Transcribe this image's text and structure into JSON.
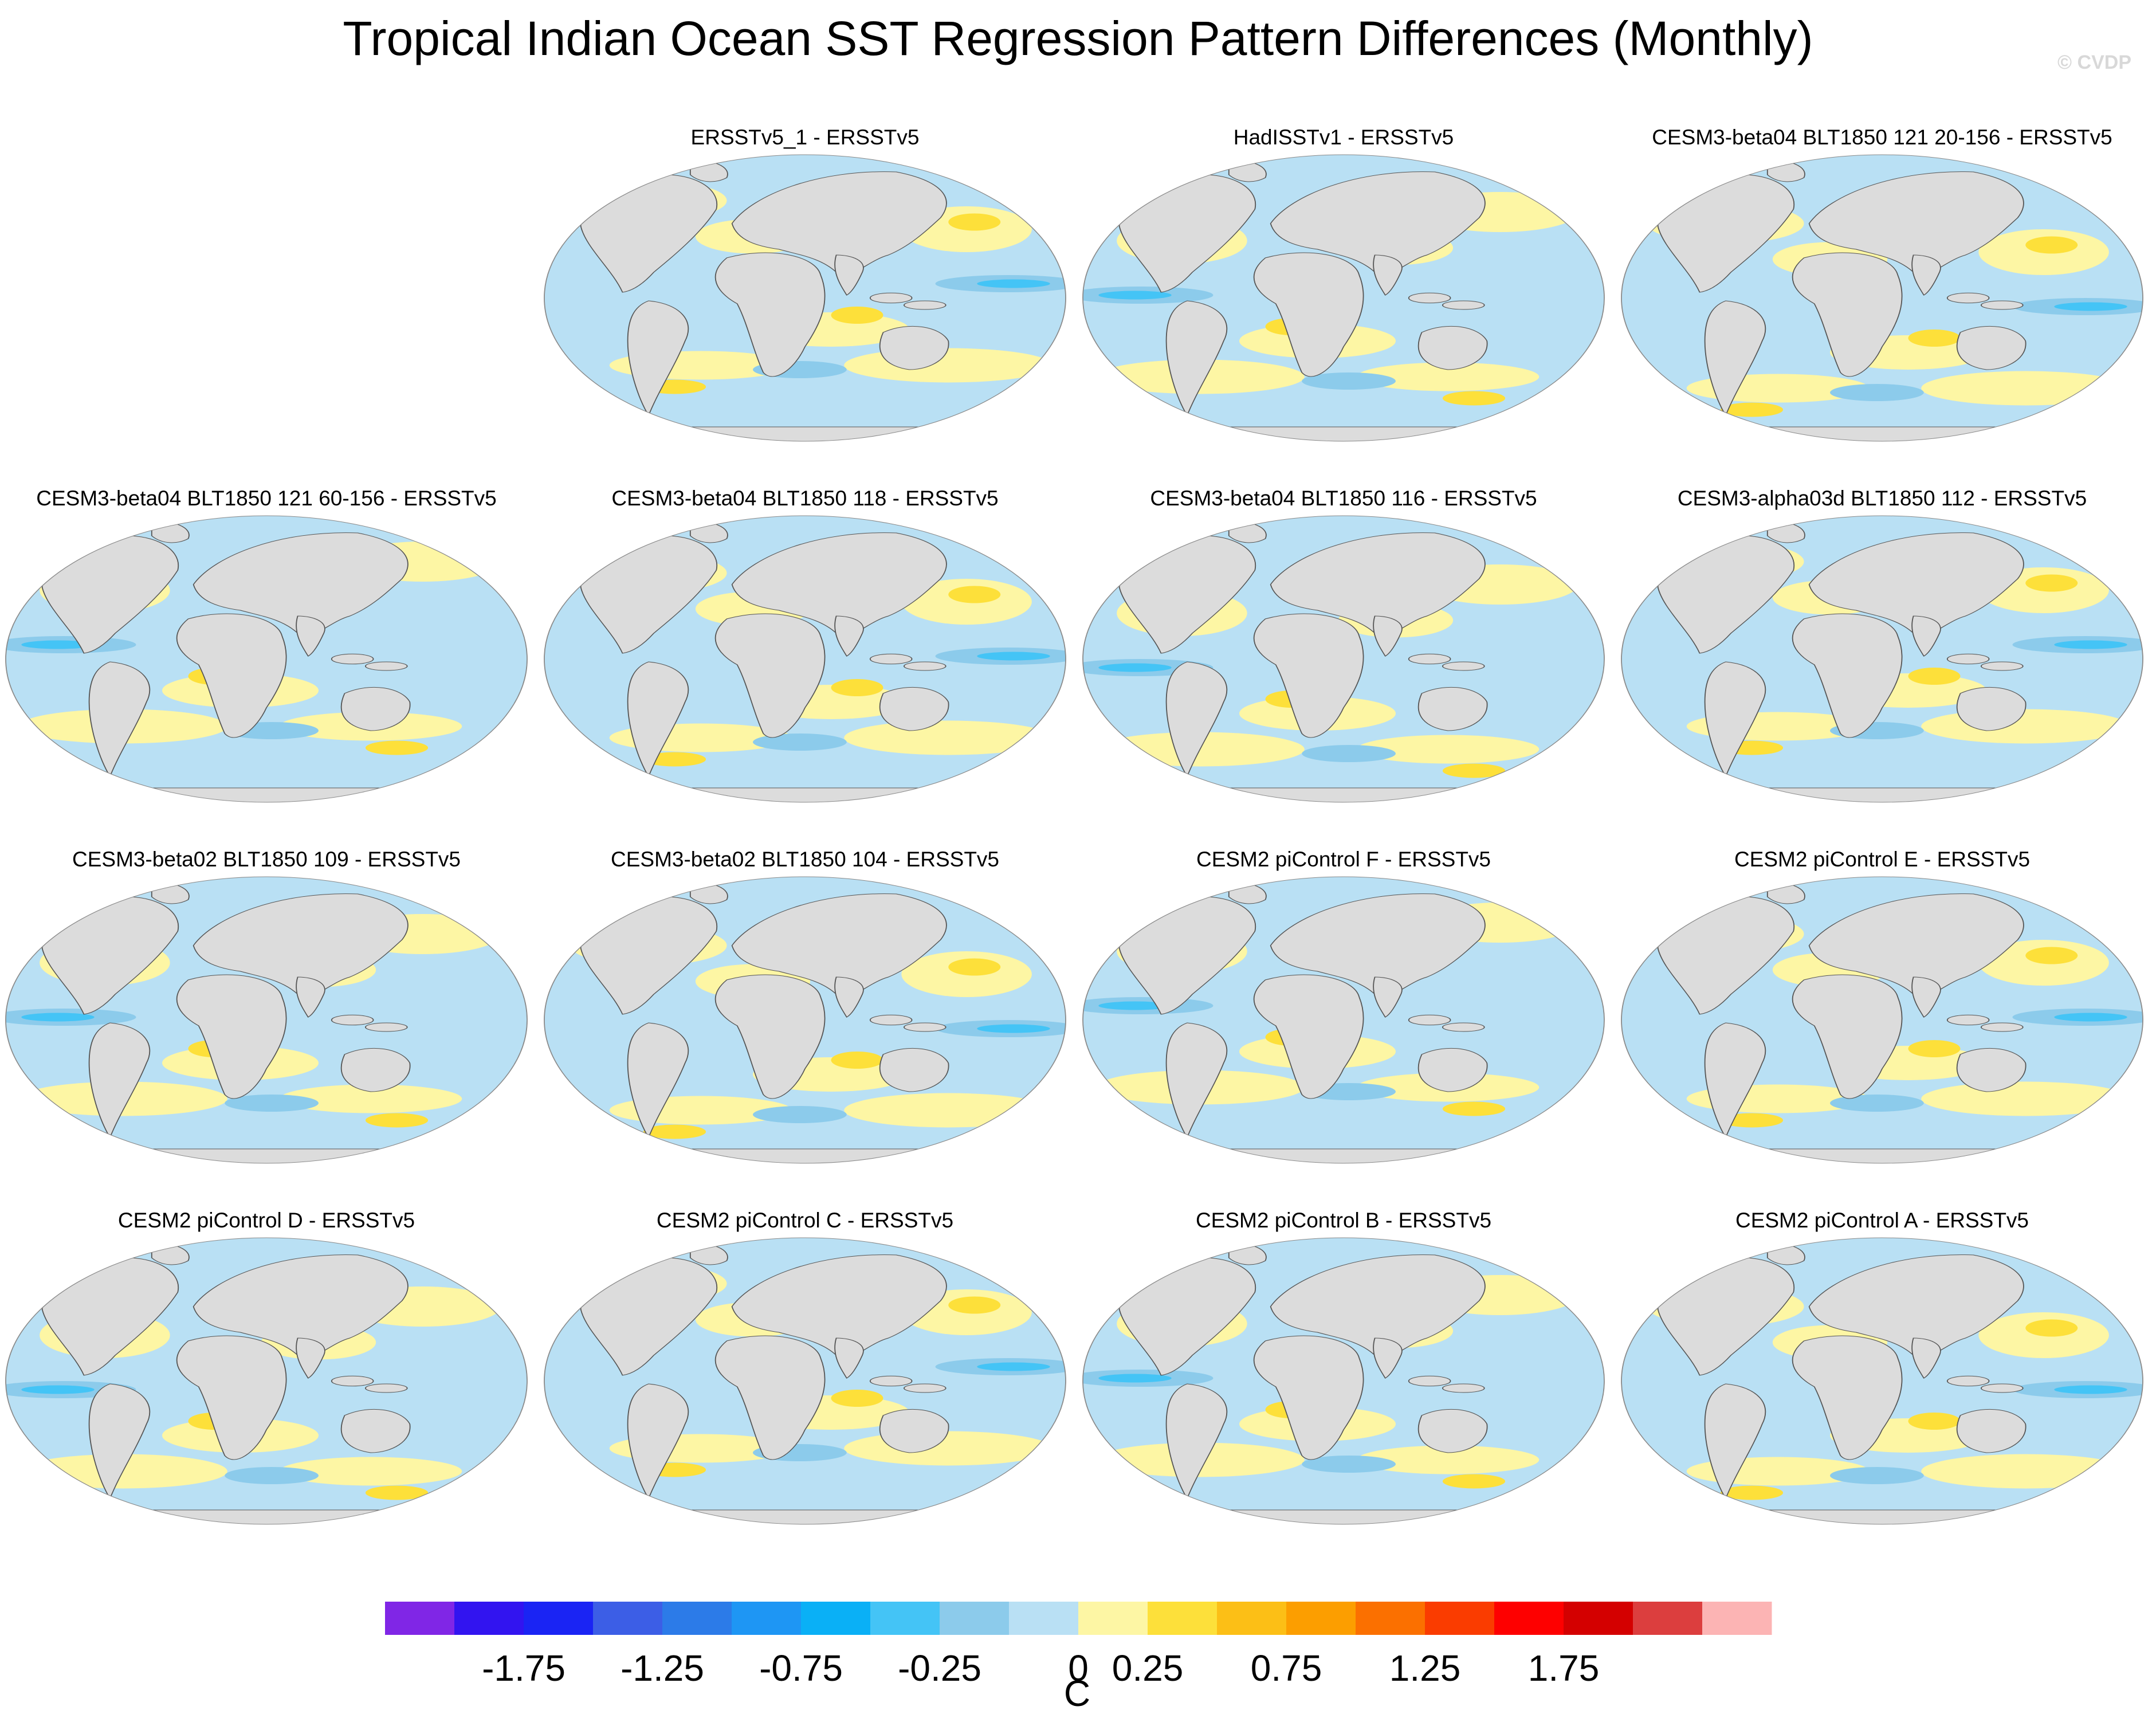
{
  "title": "Tropical Indian Ocean SST Regression Pattern Differences (Monthly)",
  "watermark": "© CVDP",
  "chart_data": {
    "type": "heatmap",
    "title": "Tropical Indian Ocean SST Regression Pattern Differences (Monthly)",
    "variable": "SST regression difference",
    "units": "C",
    "projection": "global ellipse map",
    "land_color": "#dcdcdc",
    "panels": [
      {
        "title": "ERSSTv5_1 - ERSSTv5",
        "row": 0,
        "col": 1
      },
      {
        "title": "HadISSTv1 - ERSSTv5",
        "row": 0,
        "col": 2
      },
      {
        "title": "CESM3-beta04 BLT1850 121 20-156 - ERSSTv5",
        "row": 0,
        "col": 3
      },
      {
        "title": "CESM3-beta04 BLT1850 121 60-156 - ERSSTv5",
        "row": 1,
        "col": 0
      },
      {
        "title": "CESM3-beta04 BLT1850 118 - ERSSTv5",
        "row": 1,
        "col": 1
      },
      {
        "title": "CESM3-beta04 BLT1850 116 - ERSSTv5",
        "row": 1,
        "col": 2
      },
      {
        "title": "CESM3-alpha03d BLT1850 112 - ERSSTv5",
        "row": 1,
        "col": 3
      },
      {
        "title": "CESM3-beta02 BLT1850 109 - ERSSTv5",
        "row": 2,
        "col": 0
      },
      {
        "title": "CESM3-beta02 BLT1850 104 - ERSSTv5",
        "row": 2,
        "col": 1
      },
      {
        "title": "CESM2 piControl F - ERSSTv5",
        "row": 2,
        "col": 2
      },
      {
        "title": "CESM2 piControl E - ERSSTv5",
        "row": 2,
        "col": 3
      },
      {
        "title": "CESM2 piControl D - ERSSTv5",
        "row": 3,
        "col": 0
      },
      {
        "title": "CESM2 piControl C - ERSSTv5",
        "row": 3,
        "col": 1
      },
      {
        "title": "CESM2 piControl B - ERSSTv5",
        "row": 3,
        "col": 2
      },
      {
        "title": "CESM2 piControl A - ERSSTv5",
        "row": 3,
        "col": 3
      }
    ],
    "colorbar": {
      "label": "C",
      "colors": [
        "#8026e6",
        "#3214f0",
        "#1a24f4",
        "#3c5ee6",
        "#2c7be8",
        "#1e96f4",
        "#0ab0f6",
        "#44c4f6",
        "#8ccbeb",
        "#b9e0f4",
        "#fdf6a4",
        "#fde03a",
        "#fcbf16",
        "#fc9e00",
        "#fb7000",
        "#fa3c00",
        "#fe0000",
        "#d40000",
        "#dc3e3e",
        "#fcb4b4"
      ],
      "tick_labels": [
        "-1.75",
        "-1.25",
        "-0.75",
        "-0.25",
        "0",
        "0.25",
        "0.75",
        "1.25",
        "1.75"
      ],
      "tick_boundaries": [
        2,
        4,
        6,
        8,
        10,
        11,
        13,
        15,
        17
      ]
    }
  }
}
